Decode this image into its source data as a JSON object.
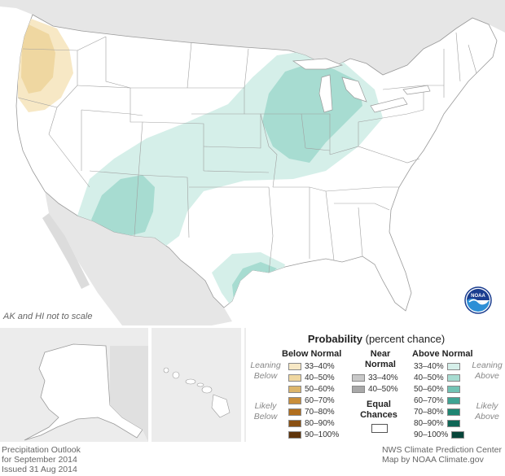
{
  "note": "AK and HI not to scale",
  "legend": {
    "title_bold": "Probability",
    "title_rest": " (percent chance)",
    "below": {
      "header": "Below Normal",
      "leaning_label": [
        "Leaning",
        "Below"
      ],
      "likely_label": [
        "Likely",
        "Below"
      ],
      "rows": [
        {
          "label": "33–40%",
          "color": "#f7e8c5"
        },
        {
          "label": "40–50%",
          "color": "#efd7a1"
        },
        {
          "label": "50–60%",
          "color": "#dcb56b"
        },
        {
          "label": "60–70%",
          "color": "#c98e3a"
        },
        {
          "label": "70–80%",
          "color": "#b06e1e"
        },
        {
          "label": "80–90%",
          "color": "#8a5012"
        },
        {
          "label": "90–100%",
          "color": "#5e340a"
        }
      ]
    },
    "near": {
      "header": [
        "Near",
        "Normal"
      ],
      "rows": [
        {
          "label": "33–40%",
          "color": "#c8c8c8"
        },
        {
          "label": "40–50%",
          "color": "#a8a8a8"
        }
      ]
    },
    "equal": {
      "label": [
        "Equal",
        "Chances"
      ]
    },
    "above": {
      "header": "Above Normal",
      "leaning_label": [
        "Leaning",
        "Above"
      ],
      "likely_label": [
        "Likely",
        "Above"
      ],
      "rows": [
        {
          "label": "33–40%",
          "color": "#d5efe9"
        },
        {
          "label": "40–50%",
          "color": "#a7dcd1"
        },
        {
          "label": "50–60%",
          "color": "#72c3b4"
        },
        {
          "label": "60–70%",
          "color": "#3fa493"
        },
        {
          "label": "70–80%",
          "color": "#1f8572"
        },
        {
          "label": "80–90%",
          "color": "#0f6656"
        },
        {
          "label": "90–100%",
          "color": "#07453a"
        }
      ]
    }
  },
  "footer": {
    "left": [
      "Precipitation Outlook",
      "for September 2014",
      "Issued 31 Aug 2014"
    ],
    "right": [
      "NWS Climate Prediction Center",
      "Map by NOAA Climate.gov"
    ]
  },
  "logo": {
    "text": "NOAA"
  }
}
